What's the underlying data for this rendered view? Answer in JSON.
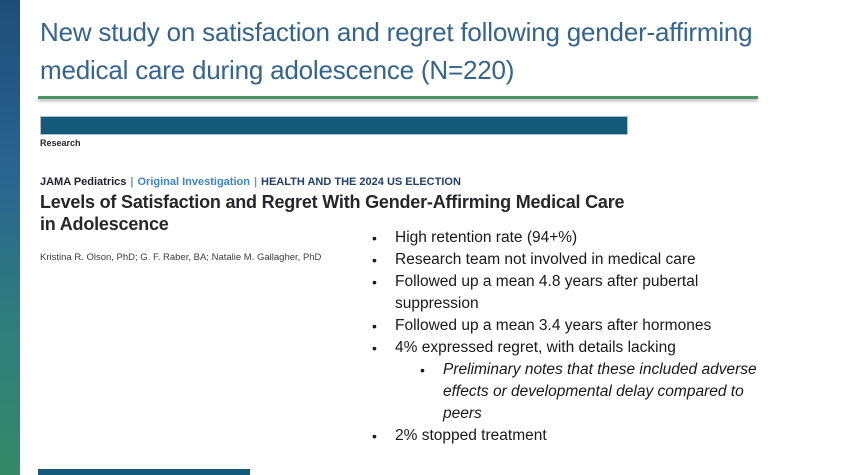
{
  "slide": {
    "title_line1": "New study on satisfaction and regret following gender-affirming",
    "title_line2": "medical care during adolescence (N=220)",
    "colors": {
      "title_blue": "#35648c",
      "divider_green": "#4a9668",
      "banner_navy": "#14587a",
      "edge_gradient_top": "#1e4d78",
      "edge_gradient_bottom": "#348a67"
    }
  },
  "paper": {
    "section_label": "Research",
    "journal_name": "JAMA Pediatrics",
    "separator": "|",
    "article_type": "Original Investigation",
    "collection": "HEALTH AND THE 2024 US ELECTION",
    "title_line1": "Levels of Satisfaction and Regret With Gender-Affirming Medical Care",
    "title_line2": "in Adolescence",
    "authors": "Kristina R. Olson, PhD; G. F. Raber, BA; Natalie M. Gallagher, PhD"
  },
  "findings": {
    "bullet_char": "•",
    "items": [
      {
        "text": "High retention rate (94+%)"
      },
      {
        "text": "Research team not involved in medical care"
      },
      {
        "text": "Followed up a mean 4.8 years after pubertal\nsuppression"
      },
      {
        "text": "Followed up a mean 3.4 years after hormones"
      },
      {
        "text": "4% expressed regret, with details lacking"
      },
      {
        "text": "Preliminary notes that these included adverse\neffects or developmental delay compared to\npeers"
      },
      {
        "text": "2% stopped treatment"
      }
    ]
  }
}
